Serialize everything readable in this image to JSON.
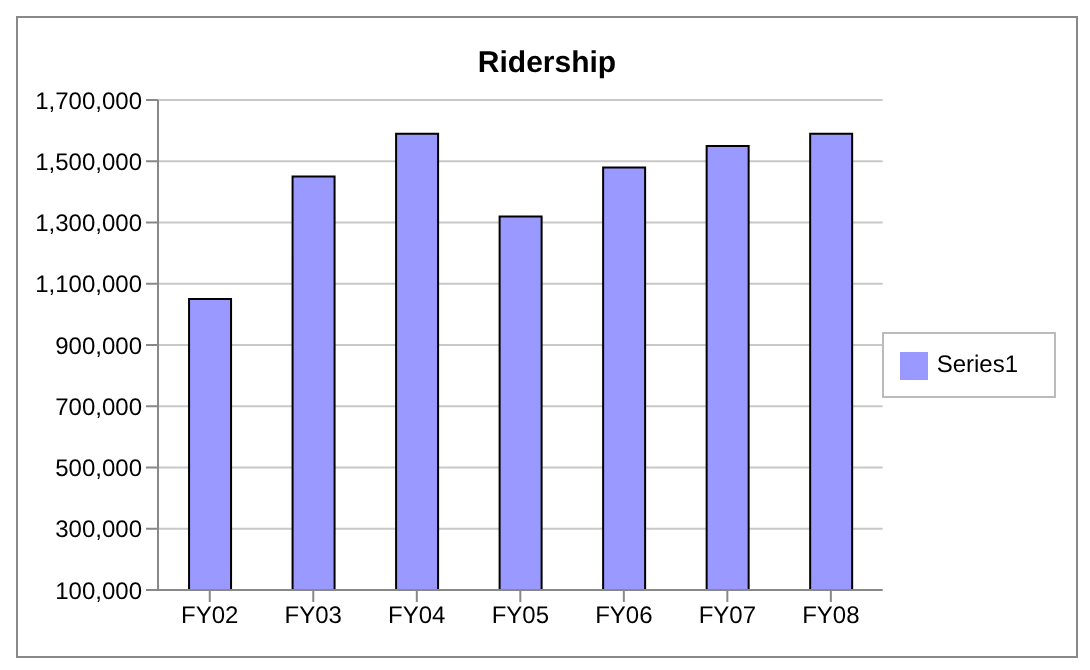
{
  "chart_data": {
    "type": "bar",
    "title": "Ridership",
    "categories": [
      "FY02",
      "FY03",
      "FY04",
      "FY05",
      "FY06",
      "FY07",
      "FY08"
    ],
    "series": [
      {
        "name": "Series1",
        "color": "#9999ff",
        "values": [
          1050000,
          1450000,
          1590000,
          1320000,
          1480000,
          1550000,
          1590000
        ]
      }
    ],
    "ylim": [
      100000,
      1700000
    ],
    "yticks": [
      {
        "value": 100000,
        "label": "100,000"
      },
      {
        "value": 300000,
        "label": "300,000"
      },
      {
        "value": 500000,
        "label": "500,000"
      },
      {
        "value": 700000,
        "label": "700,000"
      },
      {
        "value": 900000,
        "label": "900,000"
      },
      {
        "value": 1100000,
        "label": "1,100,000"
      },
      {
        "value": 1300000,
        "label": "1,300,000"
      },
      {
        "value": 1500000,
        "label": "1,500,000"
      },
      {
        "value": 1700000,
        "label": "1,700,000"
      }
    ],
    "grid": "y",
    "legend": "right"
  }
}
